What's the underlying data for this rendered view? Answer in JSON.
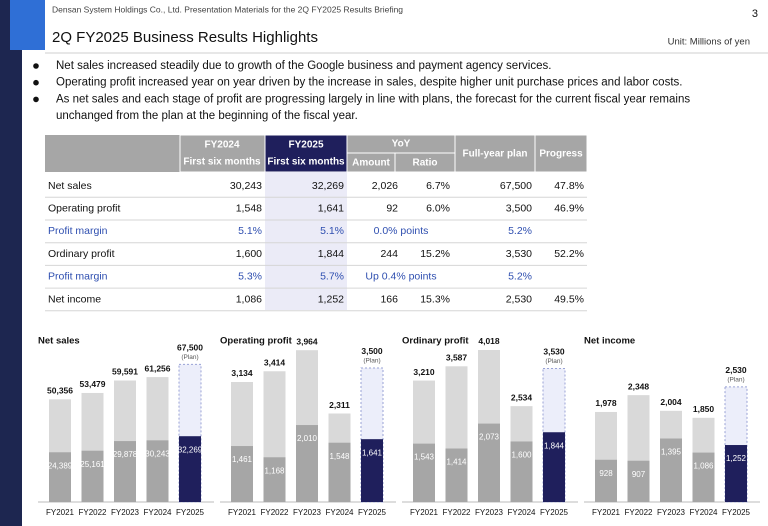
{
  "header": {
    "company": "Densan System Holdings Co., Ltd. Presentation Materials for the 2Q FY2025 Results Briefing",
    "page": "3",
    "title": "2Q FY2025 Business Results Highlights",
    "unit": "Unit: Millions of yen"
  },
  "bullets": [
    "Net sales increased steadily due to growth of the Google business and payment agency services.",
    "Operating profit increased year on year driven by the increase in sales, despite higher unit purchase prices and labor costs.",
    "As net sales and each stage of profit are progressing largely in line with plans, the forecast for the current fiscal year remains",
    "unchanged from the plan at the beginning of the fiscal year."
  ],
  "table": {
    "header": {
      "fy2024": "FY2024",
      "fy2024_sub": "First six months",
      "fy2025": "FY2025",
      "fy2025_sub": "First six months",
      "yoy": "YoY",
      "amount": "Amount",
      "ratio": "Ratio",
      "plan": "Full-year plan",
      "progress": "Progress"
    },
    "rows": [
      [
        "Net sales",
        "30,243",
        "32,269",
        "2,026",
        "6.7%",
        "67,500",
        "47.8%"
      ],
      [
        "Operating profit",
        "1,548",
        "1,641",
        "92",
        "6.0%",
        "3,500",
        "46.9%"
      ],
      [
        "Profit margin",
        "5.1%",
        "5.1%",
        "0.0% points",
        "5.2%"
      ],
      [
        "Ordinary profit",
        "1,600",
        "1,844",
        "244",
        "15.2%",
        "3,530",
        "52.2%"
      ],
      [
        "Profit margin",
        "5.3%",
        "5.7%",
        "Up 0.4% points",
        "5.2%"
      ],
      [
        "Net income",
        "1,086",
        "1,252",
        "166",
        "15.3%",
        "2,530",
        "49.5%"
      ]
    ]
  },
  "chart_data": [
    {
      "type": "bar",
      "title": "Net sales",
      "annotation": "(Plan)",
      "categories": [
        "FY2021",
        "FY2022",
        "FY2023",
        "FY2024",
        "FY2025"
      ],
      "ylim": [
        0,
        77000
      ],
      "plan_color": "#eceefa",
      "current_color": "#1f1f5c",
      "series": [
        {
          "color": "#d9d9d9",
          "values": [
            50356,
            53479,
            59591,
            61256,
            67500
          ],
          "value_labels": [
            "50,356",
            "53,479",
            "59,591",
            "61,256",
            "67,500"
          ]
        },
        {
          "color": "#a6a6a6",
          "values": [
            24389,
            25161,
            29878,
            30243,
            32269
          ],
          "value_labels": [
            "24,389",
            "25,161",
            "29,878",
            "30,243",
            "32,269"
          ]
        }
      ]
    },
    {
      "type": "bar",
      "title": "Operating profit",
      "annotation": "(Plan)",
      "categories": [
        "FY2021",
        "FY2022",
        "FY2023",
        "FY2024",
        "FY2025"
      ],
      "ylim": [
        0,
        4100
      ],
      "plan_color": "#eceefa",
      "current_color": "#1f1f5c",
      "series": [
        {
          "color": "#d9d9d9",
          "values": [
            3134,
            3414,
            3964,
            2311,
            3500
          ],
          "value_labels": [
            "3,134",
            "3,414",
            "3,964",
            "2,311",
            "3,500"
          ]
        },
        {
          "color": "#a6a6a6",
          "values": [
            1461,
            1168,
            2010,
            1548,
            1641
          ],
          "value_labels": [
            "1,461",
            "1,168",
            "2,010",
            "1,548",
            "1,641"
          ]
        }
      ]
    },
    {
      "type": "bar",
      "title": "Ordinary profit",
      "annotation": "(Plan)",
      "categories": [
        "FY2021",
        "FY2022",
        "FY2023",
        "FY2024",
        "FY2025"
      ],
      "ylim": [
        0,
        4150
      ],
      "plan_color": "#eceefa",
      "current_color": "#1f1f5c",
      "series": [
        {
          "color": "#d9d9d9",
          "values": [
            3210,
            3587,
            4018,
            2534,
            3530
          ],
          "value_labels": [
            "3,210",
            "3,587",
            "4,018",
            "2,534",
            "3,530"
          ]
        },
        {
          "color": "#a6a6a6",
          "values": [
            1543,
            1414,
            2073,
            1600,
            1844
          ],
          "value_labels": [
            "1,543",
            "1,414",
            "2,073",
            "1,600",
            "1,844"
          ]
        }
      ]
    },
    {
      "type": "bar",
      "title": "Net income",
      "annotation": "(Plan)",
      "categories": [
        "FY2021",
        "FY2022",
        "FY2023",
        "FY2024",
        "FY2025"
      ],
      "ylim": [
        0,
        3450
      ],
      "plan_color": "#eceefa",
      "current_color": "#1f1f5c",
      "series": [
        {
          "color": "#d9d9d9",
          "values": [
            1978,
            2348,
            2004,
            1850,
            2530
          ],
          "value_labels": [
            "1,978",
            "2,348",
            "2,004",
            "1,850",
            "2,530"
          ]
        },
        {
          "color": "#a6a6a6",
          "values": [
            928,
            907,
            1395,
            1086,
            1252
          ],
          "value_labels": [
            "928",
            "907",
            "1,395",
            "1,086",
            "1,252"
          ]
        }
      ]
    }
  ]
}
